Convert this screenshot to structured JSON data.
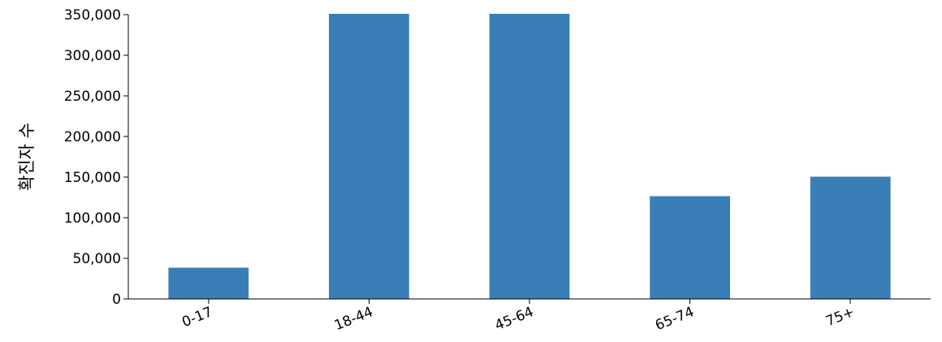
{
  "chart_data": {
    "type": "bar",
    "categories": [
      "0-17",
      "18-44",
      "45-64",
      "65-74",
      "75+"
    ],
    "values": [
      38500,
      351000,
      351000,
      126500,
      150500
    ],
    "title": "",
    "xlabel": "",
    "ylabel": "확진자 수",
    "ylim": [
      0,
      350000
    ],
    "yticks": [
      "0",
      "50,000",
      "100,000",
      "150,000",
      "200,000",
      "250,000",
      "300,000",
      "350,000"
    ],
    "grid": false,
    "bar_color": "#3a7eb8"
  }
}
